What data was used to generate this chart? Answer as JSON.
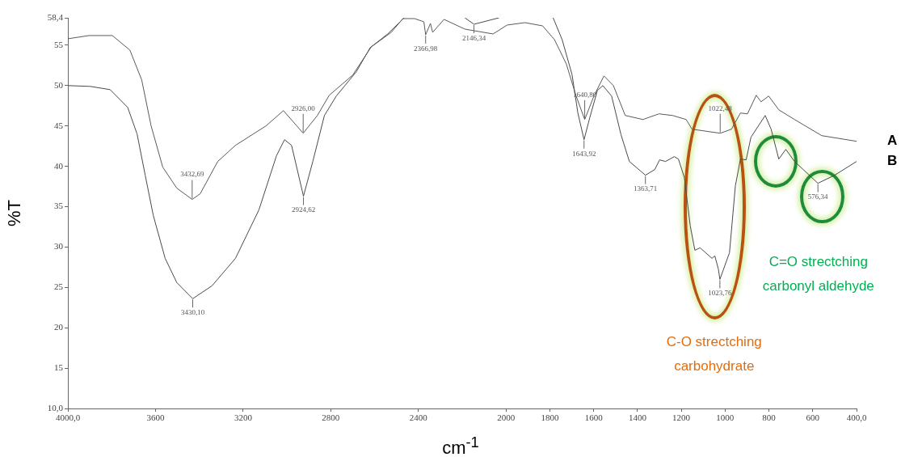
{
  "chart_data": {
    "type": "line",
    "xlabel": "cm$^{-1}$",
    "ylabel": "%T",
    "xlim": [
      4000,
      400
    ],
    "ylim": [
      10,
      58.4
    ],
    "xticks": [
      {
        "value": 4000,
        "label": "4000,0"
      },
      3600,
      3200,
      2800,
      2400,
      2000,
      1800,
      1600,
      1400,
      1200,
      1000,
      800,
      600,
      {
        "value": 400,
        "label": "400,0"
      }
    ],
    "yticks": [
      {
        "value": 10,
        "label": "10,0"
      },
      15,
      20,
      25,
      30,
      35,
      40,
      45,
      50,
      55,
      {
        "value": 58.4,
        "label": "58,4"
      }
    ],
    "legend": false,
    "marker": "none",
    "line_style": "solid",
    "series": [
      {
        "name": "A",
        "color": "#5a5a5a",
        "x": [
          4000,
          3904,
          3797,
          3717,
          3663,
          3620,
          3567,
          3503,
          3432.69,
          3396,
          3316,
          3235,
          3096,
          3016,
          2926,
          2861,
          2807,
          2700,
          2615,
          2524,
          2471,
          2417,
          2375,
          2366.98,
          2345,
          2335,
          2283,
          2188,
          2146.34,
          2059,
          1995,
          1914,
          1833,
          1779,
          1725,
          1680,
          1640.8,
          1599,
          1553,
          1510,
          1456,
          1375,
          1302,
          1240,
          1178,
          1151,
          1022.48,
          971,
          930,
          898,
          858,
          836,
          801,
          755,
          683,
          559,
          400
        ],
        "values": [
          55.8,
          56.2,
          56.2,
          54.4,
          50.7,
          45,
          39.9,
          37.3,
          35.9,
          36.6,
          40.6,
          42.6,
          45,
          46.9,
          44.1,
          46.3,
          48.8,
          51.3,
          54.8,
          56.6,
          58.3,
          58.3,
          57.9,
          56.3,
          57.7,
          56.6,
          58.2,
          57,
          56.8,
          56.4,
          57.5,
          57.8,
          57.4,
          55.7,
          52.7,
          48.7,
          45.8,
          48.7,
          51.2,
          50,
          46.3,
          45.8,
          46.5,
          46.3,
          45.8,
          44.6,
          44.1,
          44.6,
          46.6,
          46.5,
          48.8,
          48,
          48.7,
          47,
          45.8,
          43.8,
          43.1
        ]
      },
      {
        "name": "B",
        "color": "#4a4a4a",
        "x": [
          4000,
          3898,
          3807,
          3727,
          3684,
          3647,
          3610,
          3556,
          3503,
          3430.1,
          3342,
          3235,
          3128,
          3048,
          3011,
          2979,
          2924.62,
          2882,
          2829,
          2775,
          2684,
          2620,
          2540,
          2465,
          2300,
          2188,
          2146.34,
          2032,
          1900,
          1785,
          1744,
          1699,
          1672,
          1643.92,
          1618,
          1583,
          1558,
          1518,
          1475,
          1437,
          1363.71,
          1321,
          1299,
          1272,
          1232,
          1213,
          1186,
          1159,
          1138,
          1114,
          1060,
          1047,
          1031,
          1023.76,
          980,
          953,
          930,
          904,
          882,
          817,
          790,
          755,
          723,
          683,
          576.34,
          500,
          400
        ],
        "values": [
          50,
          49.9,
          49.5,
          47.3,
          44,
          38.9,
          33.9,
          28.6,
          25.6,
          23.6,
          25.2,
          28.6,
          34.6,
          41.3,
          43.3,
          42.6,
          36.3,
          40.6,
          46.3,
          48.7,
          51.7,
          54.7,
          56.4,
          58.4,
          null,
          58.4,
          57.6,
          58.4,
          null,
          58.4,
          55.7,
          51.4,
          46.6,
          43.3,
          46,
          49.4,
          50,
          48.7,
          43.9,
          40.6,
          38.9,
          39.6,
          40.8,
          40.6,
          41.2,
          40.9,
          38.6,
          32.6,
          29.6,
          29.9,
          28.6,
          28.9,
          27.3,
          26,
          29.3,
          37.6,
          40.9,
          40.8,
          43.6,
          46.3,
          44.6,
          40.9,
          42.1,
          40.6,
          37.9,
          38.9,
          40.6
        ]
      }
    ],
    "annotations": [
      {
        "text": "3432,69",
        "x": 3432.69,
        "y": 35.9
      },
      {
        "text": "3430,10",
        "x": 3430.1,
        "y": 23.6
      },
      {
        "text": "2926,00",
        "x": 2926,
        "y": 44.1
      },
      {
        "text": "2924,62",
        "x": 2924.62,
        "y": 36.3
      },
      {
        "text": "2366,98",
        "x": 2366.98,
        "y": 56.3
      },
      {
        "text": "2146,34",
        "x": 2146.34,
        "y": 57.6
      },
      {
        "text": "1640,80",
        "x": 1640.8,
        "y": 45.8
      },
      {
        "text": "1643,92",
        "x": 1643.92,
        "y": 43.3
      },
      {
        "text": "1363,71",
        "x": 1363.71,
        "y": 38.9
      },
      {
        "text": "1022,48",
        "x": 1022.48,
        "y": 44.1
      },
      {
        "text": "1023,76",
        "x": 1023.76,
        "y": 26
      },
      {
        "text": "576,34",
        "x": 576.34,
        "y": 37.9
      },
      "C-O strectching\ncarbohydrate",
      "C=O strectching\ncarbonyl aldehyde"
    ]
  }
}
